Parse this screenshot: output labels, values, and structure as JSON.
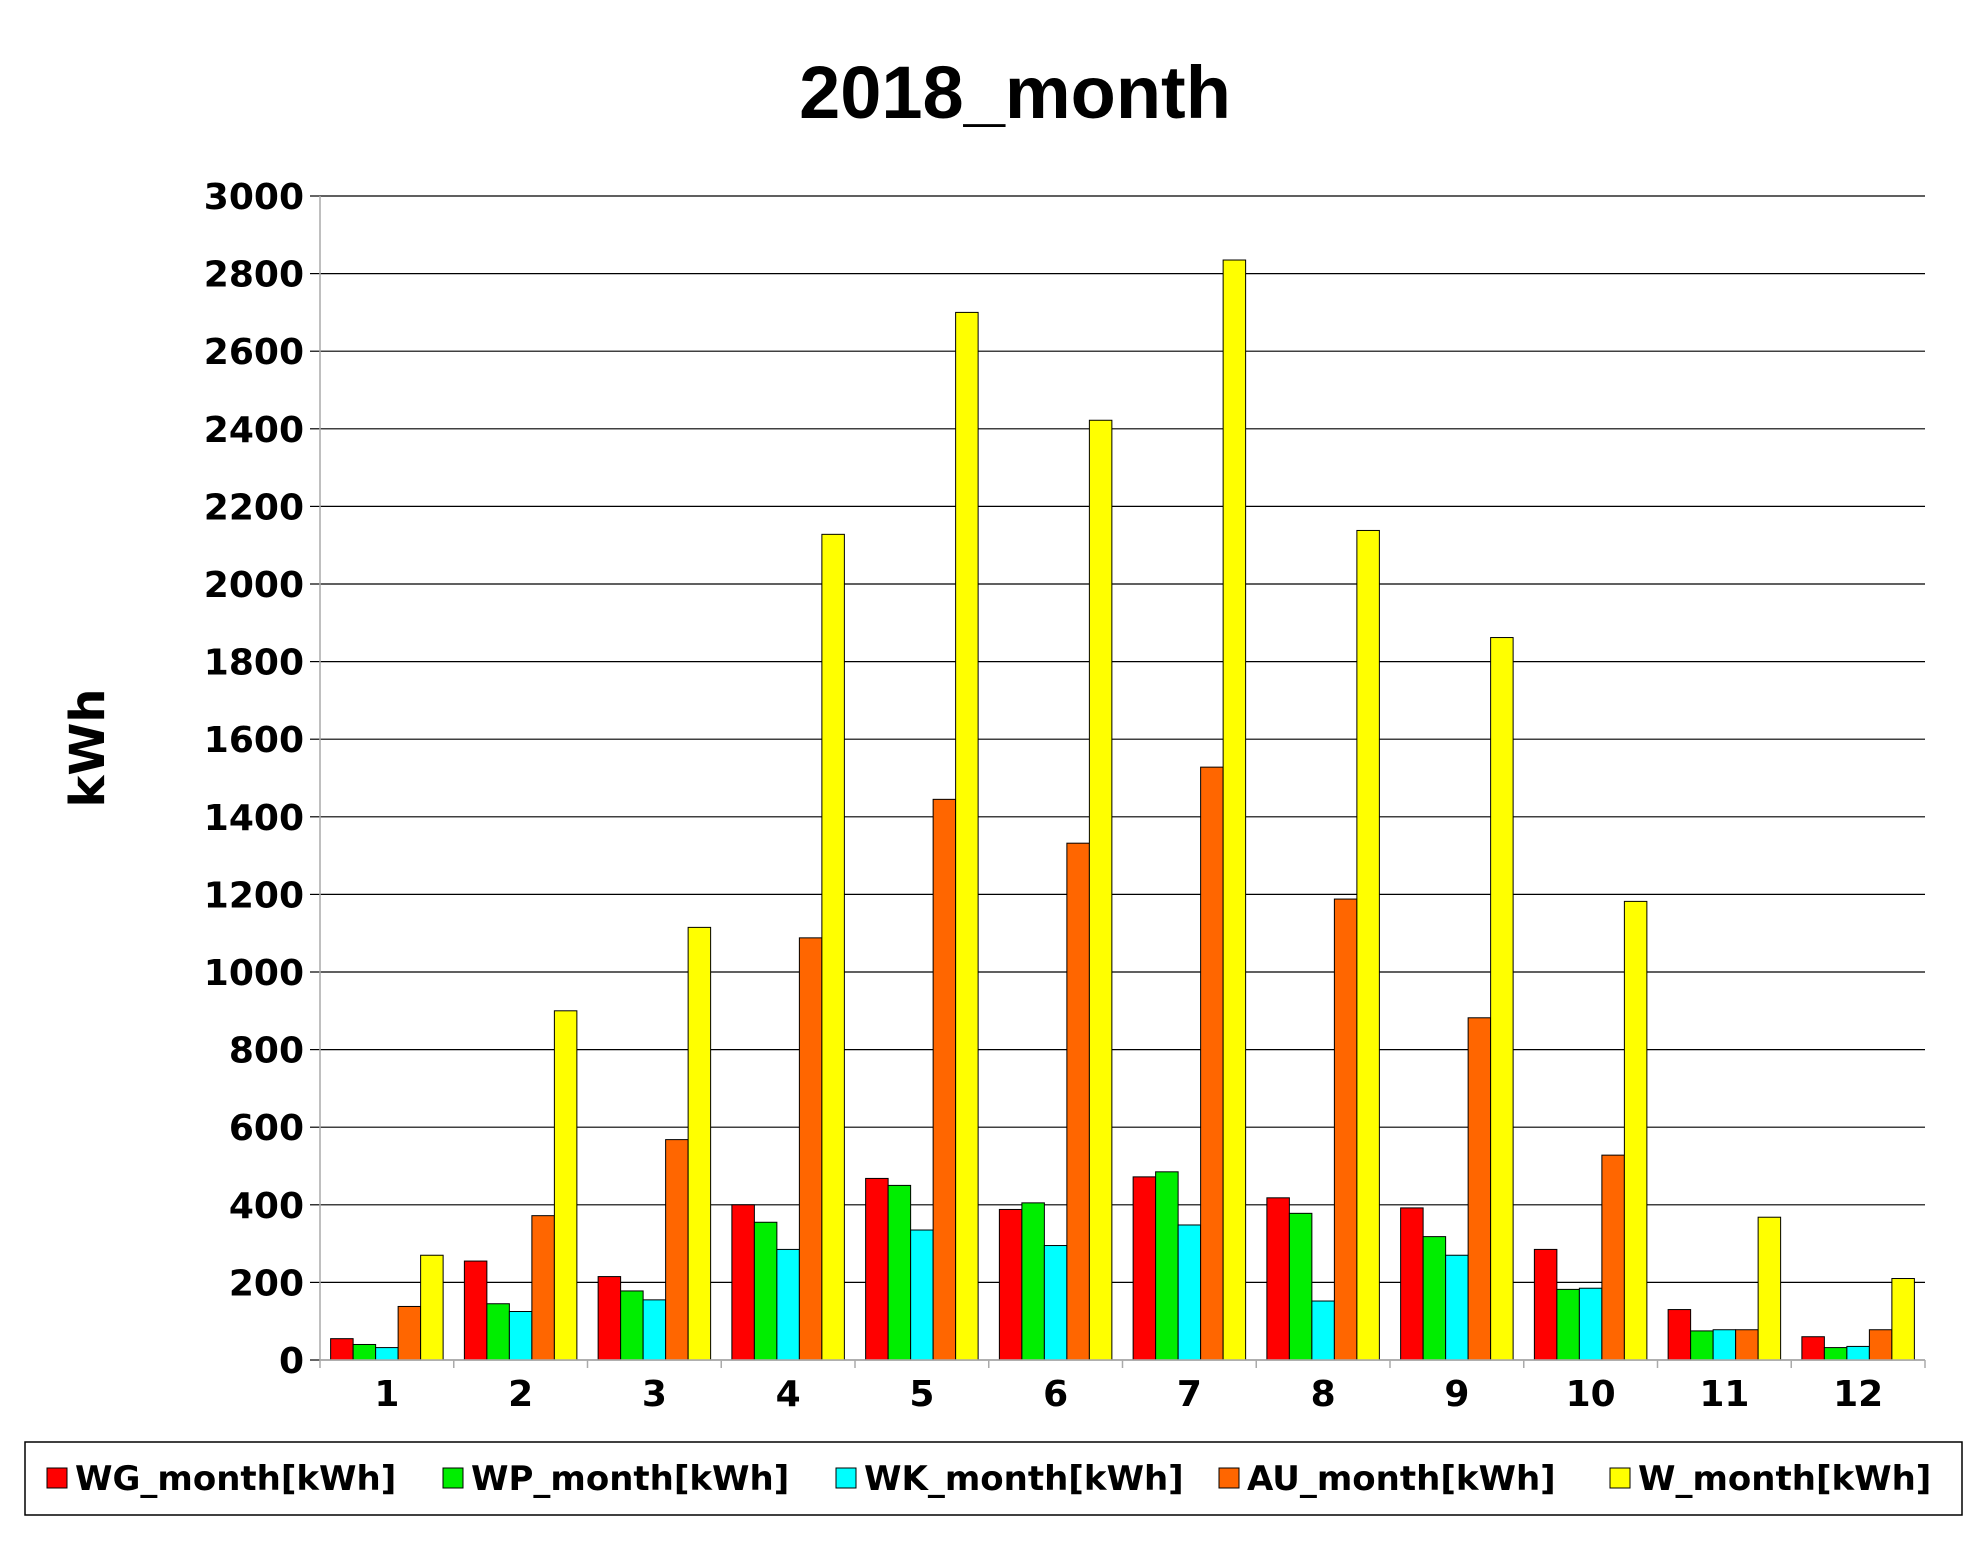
{
  "chart_data": {
    "type": "bar",
    "title": "2018_month",
    "xlabel": "",
    "ylabel": "kWh",
    "ylim": [
      0,
      3000
    ],
    "yticks": [
      "0",
      "200",
      "400",
      "600",
      "800",
      "1000",
      "1200",
      "1400",
      "1600",
      "1800",
      "2000",
      "2200",
      "2400",
      "2600",
      "2800",
      "3000"
    ],
    "grid": true,
    "legend_position": "bottom",
    "categories": [
      "1",
      "2",
      "3",
      "4",
      "5",
      "6",
      "7",
      "8",
      "9",
      "10",
      "11",
      "12"
    ],
    "series": [
      {
        "name": "WG_month[kWh]",
        "color": "#ff0000",
        "values": [
          55,
          255,
          215,
          400,
          468,
          388,
          472,
          418,
          392,
          285,
          130,
          60
        ]
      },
      {
        "name": "WP_month[kWh]",
        "color": "#00ee00",
        "values": [
          40,
          145,
          178,
          355,
          450,
          405,
          485,
          378,
          318,
          182,
          75,
          32
        ]
      },
      {
        "name": "WK_month[kWh]",
        "color": "#00ffff",
        "values": [
          32,
          125,
          155,
          285,
          335,
          295,
          348,
          152,
          270,
          185,
          78,
          35
        ]
      },
      {
        "name": "AU_month[kWh]",
        "color": "#ff6600",
        "values": [
          138,
          372,
          568,
          1088,
          1445,
          1332,
          1528,
          1188,
          882,
          528,
          78,
          78
        ]
      },
      {
        "name": "W_month[kWh]",
        "color": "#ffff00",
        "values": [
          270,
          900,
          1115,
          2128,
          2700,
          2422,
          2835,
          2138,
          1862,
          1182,
          368,
          210
        ]
      }
    ]
  }
}
